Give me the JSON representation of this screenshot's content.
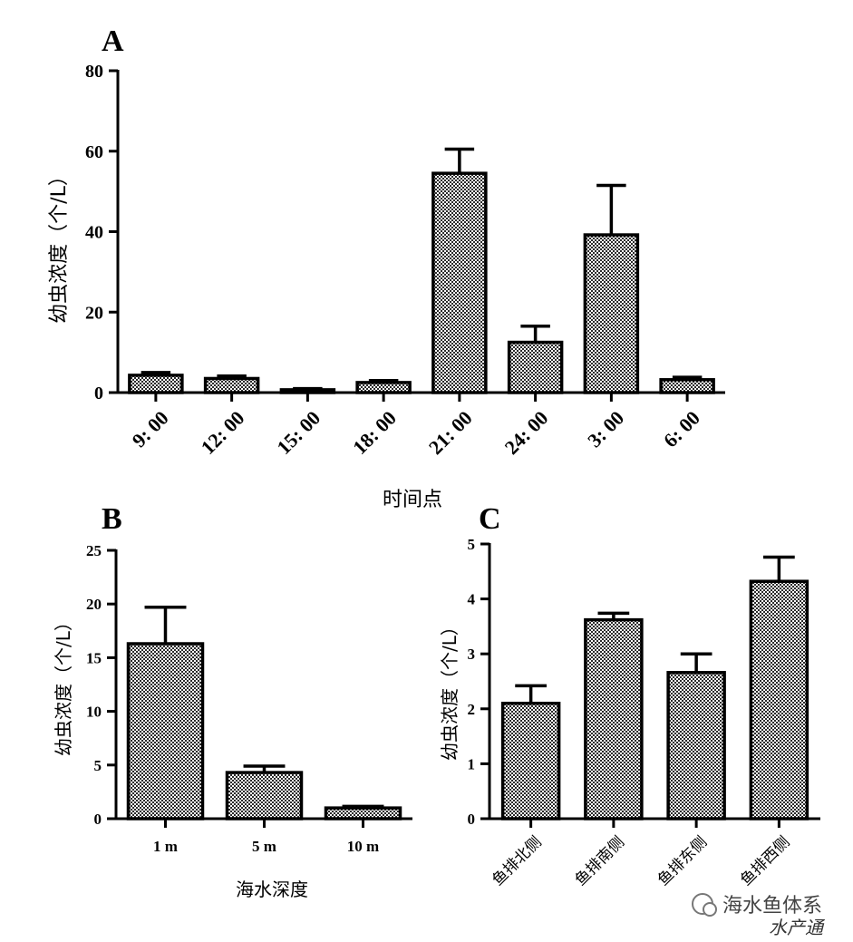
{
  "chart_data": [
    {
      "panel": "A",
      "type": "bar",
      "xlabel": "时间点",
      "ylabel": "幼虫浓度（个/L）",
      "categories": [
        "9:  00",
        "12:  00",
        "15:  00",
        "18:  00",
        "21:  00",
        "24:  00",
        "3:  00",
        "6:  00"
      ],
      "values": [
        4.3,
        3.5,
        0.7,
        2.5,
        54.5,
        12.5,
        39.2,
        3.2
      ],
      "errors": [
        0.7,
        0.6,
        0.3,
        0.5,
        6.0,
        4.0,
        12.3,
        0.6
      ],
      "ylim": [
        0,
        80
      ],
      "yticks": [
        0,
        20,
        40,
        60,
        80
      ]
    },
    {
      "panel": "B",
      "type": "bar",
      "xlabel": "海水深度",
      "ylabel": "幼虫浓度（个/L）",
      "categories": [
        "1 m",
        "5 m",
        "10 m"
      ],
      "values": [
        16.3,
        4.3,
        1.0
      ],
      "errors": [
        3.4,
        0.6,
        0.15
      ],
      "ylim": [
        0,
        25
      ],
      "yticks": [
        0,
        5,
        10,
        15,
        20,
        25
      ]
    },
    {
      "panel": "C",
      "type": "bar",
      "xlabel": "",
      "ylabel": "幼虫浓度（个/L）",
      "categories": [
        "鱼排北侧",
        "鱼排南侧",
        "鱼排东侧",
        "鱼排西侧"
      ],
      "values": [
        2.1,
        3.62,
        2.66,
        4.32
      ],
      "errors": [
        0.32,
        0.12,
        0.34,
        0.44
      ],
      "ylim": [
        0,
        5
      ],
      "yticks": [
        0,
        1,
        2,
        3,
        4,
        5
      ]
    }
  ],
  "watermark": {
    "line1": "海水鱼体系",
    "line2": "水产通"
  }
}
